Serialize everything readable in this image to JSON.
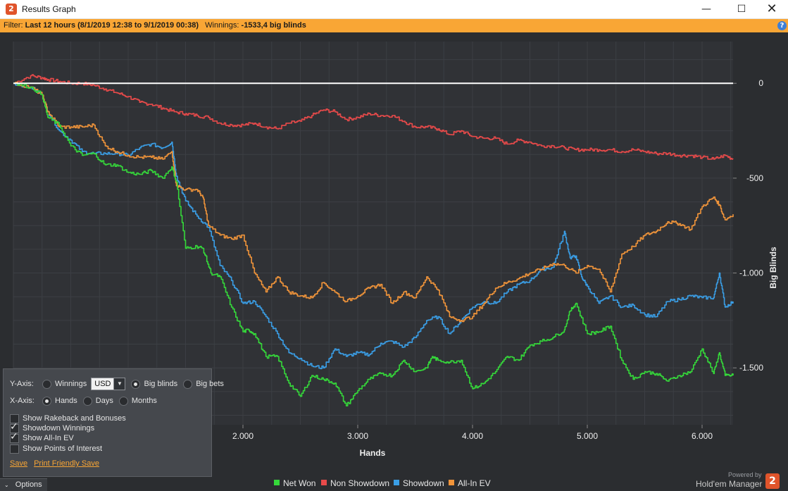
{
  "window": {
    "title": "Results Graph",
    "app_icon": "holdem-manager-icon",
    "minimize": "—",
    "maximize": "☐",
    "close": "✕"
  },
  "filter": {
    "label": "Filter:",
    "value": "Last 12 hours (8/1/2019 12:38 to 9/1/2019 00:38)",
    "winnings_label": "Winnings:",
    "winnings_value": "-1533,4 big blinds",
    "help": "?"
  },
  "options": {
    "y_axis_label": "Y-Axis:",
    "y_options": [
      "Winnings",
      "Big blinds",
      "Big bets"
    ],
    "y_selected": "Big blinds",
    "currency": "USD",
    "x_axis_label": "X-Axis:",
    "x_options": [
      "Hands",
      "Days",
      "Months"
    ],
    "x_selected": "Hands",
    "checkboxes": [
      {
        "label": "Show Rakeback and Bonuses",
        "checked": false
      },
      {
        "label": "Showdown Winnings",
        "checked": true
      },
      {
        "label": "Show All-In EV",
        "checked": true
      },
      {
        "label": "Show Points of Interest",
        "checked": false
      }
    ],
    "save": "Save",
    "print_save": "Print Friendly Save",
    "toggle": "Options"
  },
  "footer": {
    "powered_by": "Powered by",
    "brand": "Hold'em Manager",
    "logo": "2"
  },
  "chart_data": {
    "type": "line",
    "xlabel": "Hands",
    "ylabel": "Big Blinds",
    "xlim": [
      0,
      6270
    ],
    "ylim": [
      -1800,
      220
    ],
    "x_ticks": [
      2000,
      3000,
      4000,
      5000,
      6000
    ],
    "x_tick_labels": [
      "2.000",
      "3.000",
      "4.000",
      "5.000",
      "6.000"
    ],
    "y_ticks": [
      0,
      -500,
      -1000,
      -1500
    ],
    "y_tick_labels": [
      "0",
      "-500",
      "-1.000",
      "-1.500"
    ],
    "grid": true,
    "zero_line": true,
    "legend_position": "bottom",
    "background": "#2b2d30",
    "series": [
      {
        "name": "Net Won",
        "color": "#35d83a",
        "x": [
          0,
          150,
          250,
          300,
          400,
          500,
          600,
          700,
          800,
          900,
          1000,
          1100,
          1200,
          1300,
          1380,
          1420,
          1500,
          1600,
          1650,
          1720,
          1800,
          1900,
          2000,
          2050,
          2100,
          2200,
          2300,
          2400,
          2500,
          2600,
          2700,
          2800,
          2900,
          3000,
          3100,
          3200,
          3300,
          3400,
          3500,
          3600,
          3650,
          3700,
          3800,
          3900,
          4000,
          4100,
          4200,
          4300,
          4400,
          4500,
          4600,
          4700,
          4800,
          4850,
          4900,
          5000,
          5100,
          5200,
          5300,
          5400,
          5500,
          5600,
          5700,
          5800,
          5900,
          6000,
          6100,
          6150,
          6200,
          6270
        ],
        "values": [
          0,
          -20,
          -60,
          -180,
          -220,
          -330,
          -380,
          -370,
          -430,
          -430,
          -470,
          -480,
          -460,
          -500,
          -440,
          -520,
          -870,
          -860,
          -870,
          -1000,
          -1020,
          -1180,
          -1310,
          -1300,
          -1320,
          -1440,
          -1440,
          -1580,
          -1650,
          -1540,
          -1560,
          -1580,
          -1700,
          -1620,
          -1560,
          -1530,
          -1540,
          -1460,
          -1520,
          -1500,
          -1440,
          -1460,
          -1470,
          -1460,
          -1610,
          -1580,
          -1520,
          -1440,
          -1460,
          -1380,
          -1360,
          -1340,
          -1300,
          -1200,
          -1160,
          -1320,
          -1310,
          -1280,
          -1460,
          -1560,
          -1520,
          -1530,
          -1570,
          -1540,
          -1520,
          -1400,
          -1530,
          -1420,
          -1540,
          -1540
        ]
      },
      {
        "name": "Non Showdown",
        "color": "#e84a4a",
        "x": [
          0,
          150,
          250,
          300,
          400,
          500,
          600,
          700,
          800,
          900,
          1000,
          1100,
          1200,
          1300,
          1400,
          1500,
          1600,
          1700,
          1800,
          1900,
          2000,
          2100,
          2200,
          2300,
          2400,
          2500,
          2600,
          2700,
          2800,
          2900,
          3000,
          3100,
          3200,
          3300,
          3400,
          3500,
          3600,
          3700,
          3800,
          3900,
          4000,
          4100,
          4200,
          4300,
          4400,
          4500,
          4600,
          4700,
          4800,
          4900,
          5000,
          5100,
          5200,
          5300,
          5400,
          5500,
          5600,
          5700,
          5800,
          5900,
          6000,
          6100,
          6200,
          6270
        ],
        "values": [
          0,
          40,
          30,
          20,
          10,
          0,
          0,
          -10,
          -30,
          -50,
          -70,
          -100,
          -110,
          -130,
          -150,
          -160,
          -170,
          -180,
          -210,
          -220,
          -220,
          -210,
          -230,
          -240,
          -210,
          -200,
          -170,
          -140,
          -150,
          -190,
          -180,
          -160,
          -170,
          -170,
          -200,
          -230,
          -230,
          -240,
          -270,
          -250,
          -280,
          -290,
          -290,
          -320,
          -300,
          -310,
          -330,
          -330,
          -340,
          -350,
          -350,
          -350,
          -350,
          -360,
          -350,
          -360,
          -370,
          -370,
          -380,
          -380,
          -390,
          -400,
          -380,
          -400
        ]
      },
      {
        "name": "Showdown",
        "color": "#3a9ee6",
        "x": [
          0,
          150,
          250,
          300,
          400,
          500,
          600,
          700,
          800,
          900,
          1000,
          1100,
          1200,
          1300,
          1380,
          1420,
          1500,
          1600,
          1700,
          1800,
          1900,
          2000,
          2100,
          2200,
          2300,
          2400,
          2500,
          2600,
          2700,
          2800,
          2900,
          3000,
          3100,
          3200,
          3300,
          3400,
          3500,
          3600,
          3700,
          3800,
          3900,
          4000,
          4100,
          4200,
          4300,
          4400,
          4500,
          4600,
          4700,
          4800,
          4850,
          4900,
          4950,
          5000,
          5100,
          5200,
          5300,
          5400,
          5500,
          5600,
          5700,
          5800,
          5900,
          6000,
          6100,
          6150,
          6200,
          6270
        ],
        "values": [
          0,
          -20,
          -60,
          -150,
          -250,
          -300,
          -360,
          -370,
          -370,
          -370,
          -380,
          -340,
          -320,
          -340,
          -310,
          -490,
          -620,
          -700,
          -760,
          -960,
          -1040,
          -1160,
          -1150,
          -1230,
          -1320,
          -1420,
          -1450,
          -1490,
          -1500,
          -1400,
          -1440,
          -1420,
          -1430,
          -1370,
          -1360,
          -1390,
          -1340,
          -1250,
          -1230,
          -1320,
          -1250,
          -1180,
          -1150,
          -1160,
          -1100,
          -1060,
          -1040,
          -980,
          -970,
          -780,
          -920,
          -910,
          -1020,
          -1070,
          -1160,
          -1120,
          -1180,
          -1170,
          -1220,
          -1230,
          -1150,
          -1140,
          -1120,
          -1130,
          -1130,
          -1000,
          -1180,
          -1150
        ]
      },
      {
        "name": "All-In EV",
        "color": "#f0943a",
        "x": [
          0,
          150,
          250,
          300,
          400,
          500,
          600,
          700,
          800,
          900,
          1000,
          1100,
          1200,
          1300,
          1380,
          1420,
          1500,
          1600,
          1650,
          1700,
          1800,
          1900,
          2000,
          2100,
          2200,
          2300,
          2400,
          2500,
          2600,
          2700,
          2800,
          2900,
          3000,
          3100,
          3200,
          3300,
          3400,
          3500,
          3600,
          3700,
          3800,
          3900,
          4000,
          4100,
          4200,
          4300,
          4400,
          4500,
          4600,
          4700,
          4800,
          4900,
          5000,
          5100,
          5200,
          5300,
          5400,
          5500,
          5600,
          5700,
          5800,
          5900,
          6000,
          6100,
          6150,
          6200,
          6270
        ],
        "values": [
          0,
          -20,
          -60,
          -150,
          -230,
          -230,
          -230,
          -220,
          -330,
          -360,
          -380,
          -390,
          -390,
          -400,
          -360,
          -540,
          -560,
          -560,
          -600,
          -750,
          -800,
          -820,
          -800,
          -1000,
          -1100,
          -1020,
          -1100,
          -1120,
          -1130,
          -1050,
          -1100,
          -1150,
          -1120,
          -1080,
          -1060,
          -1160,
          -1100,
          -1130,
          -1020,
          -1090,
          -1230,
          -1250,
          -1230,
          -1160,
          -1080,
          -1050,
          -1030,
          -1000,
          -980,
          -950,
          -960,
          -1000,
          -960,
          -980,
          -1100,
          -900,
          -860,
          -800,
          -780,
          -730,
          -740,
          -770,
          -650,
          -600,
          -640,
          -720,
          -690
        ]
      }
    ]
  }
}
